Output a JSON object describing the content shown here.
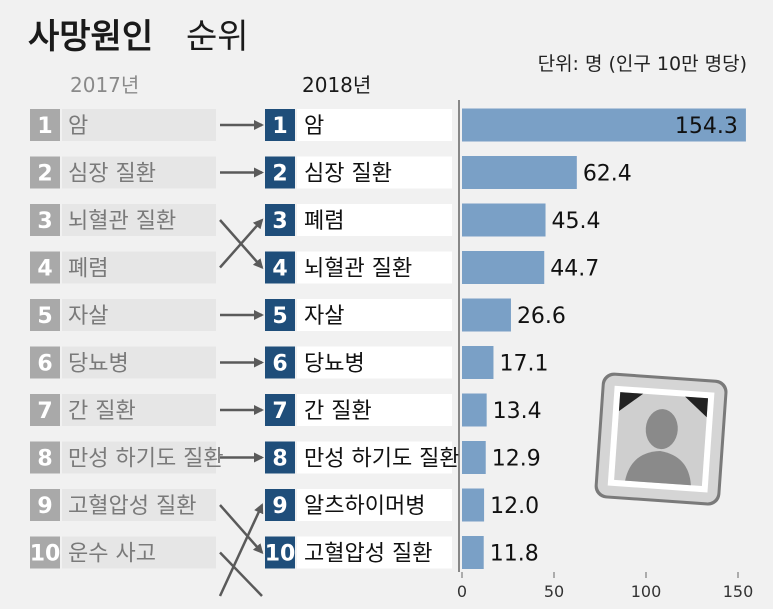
{
  "title": {
    "bold": "사망원인",
    "light": "순위"
  },
  "unit_note": "단위: 명 (인구 10만 명당)",
  "colors": {
    "bar": "#7aa0c6",
    "box_2018": "#1f4e7a",
    "box_2017": "#a9a9a9",
    "label_bg_2017": "#e6e6e6",
    "label_fg_2017": "#7a7a7a",
    "label_bg_2018": "#ffffff",
    "arrow": "#5a5a5a",
    "background": "#f1f1f1"
  },
  "icon": "portrait-frame-icon",
  "chart_data": {
    "type": "bar",
    "orientation": "horizontal",
    "xlabel": "",
    "ylabel": "",
    "xlim": [
      0,
      150
    ],
    "xticks": [
      0,
      50,
      100,
      150
    ],
    "columns": [
      "2017년",
      "2018년"
    ],
    "ranks_2017": [
      {
        "rank": "1",
        "label": "암"
      },
      {
        "rank": "2",
        "label": "심장 질환"
      },
      {
        "rank": "3",
        "label": "뇌혈관 질환"
      },
      {
        "rank": "4",
        "label": "폐렴"
      },
      {
        "rank": "5",
        "label": "자살"
      },
      {
        "rank": "6",
        "label": "당뇨병"
      },
      {
        "rank": "7",
        "label": "간 질환"
      },
      {
        "rank": "8",
        "label": "만성 하기도 질환"
      },
      {
        "rank": "9",
        "label": "고혈압성 질환"
      },
      {
        "rank": "10",
        "label": "운수 사고"
      }
    ],
    "ranks_2018": [
      {
        "rank": "1",
        "label": "암",
        "value": 154.3,
        "value_label": "154.3"
      },
      {
        "rank": "2",
        "label": "심장 질환",
        "value": 62.4,
        "value_label": "62.4"
      },
      {
        "rank": "3",
        "label": "폐렴",
        "value": 45.4,
        "value_label": "45.4"
      },
      {
        "rank": "4",
        "label": "뇌혈관 질환",
        "value": 44.7,
        "value_label": "44.7"
      },
      {
        "rank": "5",
        "label": "자살",
        "value": 26.6,
        "value_label": "26.6"
      },
      {
        "rank": "6",
        "label": "당뇨병",
        "value": 17.1,
        "value_label": "17.1"
      },
      {
        "rank": "7",
        "label": "간 질환",
        "value": 13.4,
        "value_label": "13.4"
      },
      {
        "rank": "8",
        "label": "만성 하기도 질환",
        "value": 12.9,
        "value_label": "12.9"
      },
      {
        "rank": "9",
        "label": "알츠하이머병",
        "value": 12.0,
        "value_label": "12.0"
      },
      {
        "rank": "10",
        "label": "고혈압성 질환",
        "value": 11.8,
        "value_label": "11.8"
      }
    ],
    "transitions": [
      {
        "from": 1,
        "to": 1
      },
      {
        "from": 2,
        "to": 2
      },
      {
        "from": 3,
        "to": 4
      },
      {
        "from": 4,
        "to": 3
      },
      {
        "from": 5,
        "to": 5
      },
      {
        "from": 6,
        "to": 6
      },
      {
        "from": 7,
        "to": 7
      },
      {
        "from": 8,
        "to": 8
      },
      {
        "from": 9,
        "to": 10
      },
      {
        "from": "out",
        "to": 9
      },
      {
        "from": 10,
        "to": "out"
      }
    ]
  }
}
